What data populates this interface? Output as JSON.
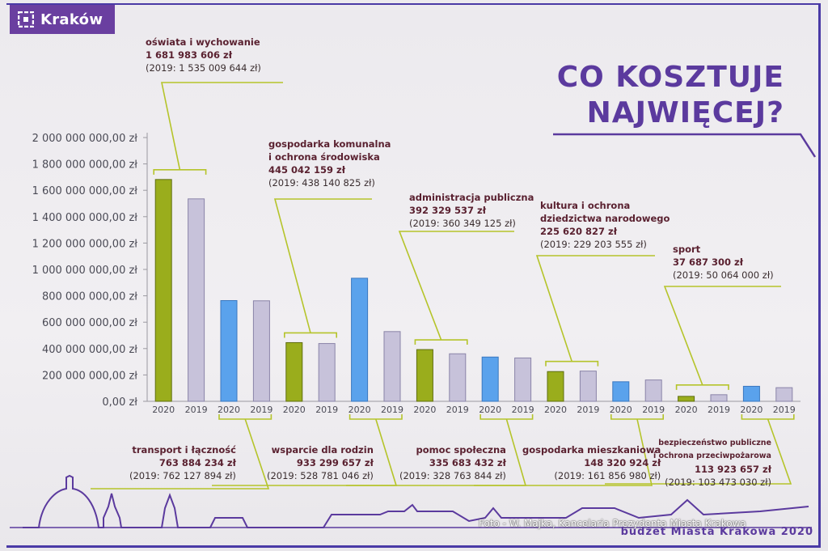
{
  "brand": {
    "name": "Kraków",
    "logo_icon": "krakow-logo-icon"
  },
  "title_lines": [
    "CO KOSZTUJE",
    "NAJWIĘCEJ?"
  ],
  "footer": {
    "brand_line": "budżet Miasta Krakowa 2020",
    "photo_credit": "Foto - W. Majka, Kancelaria Prezydenta Miasta Krakowa"
  },
  "colors": {
    "accent": "#5b3a9e",
    "bar_2020_green": "#9aad1c",
    "bar_2020_blue": "#5aa2ec",
    "bar_2019": "#c7c2da",
    "callout_line": "#b5c42a"
  },
  "chart_data": {
    "type": "bar",
    "ylim": [
      0,
      2000000000
    ],
    "yticks": [
      "0,00 zł",
      "200 000 000,00 zł",
      "400 000 000,00 zł",
      "600 000 000,00 zł",
      "800 000 000,00 zł",
      "1 000 000 000,00 zł",
      "1 200 000 000,00 zł",
      "1 400 000 000,00 zł",
      "1 600 000 000,00 zł",
      "1 800 000 000,00 zł",
      "2 000 000 000,00 zł"
    ],
    "categories": [
      {
        "label": "oświata i wychowanie",
        "amount_2020": "1 681 983 606 zł",
        "prev": "(2019: 1 535 009 644 zł)",
        "v2020": 1681983606,
        "v2019": 1535009644,
        "color2020": "green"
      },
      {
        "label": "transport i łączność",
        "amount_2020": "763 884 234 zł",
        "prev": "(2019: 762 127 894 zł)",
        "v2020": 763884234,
        "v2019": 762127894,
        "color2020": "blue"
      },
      {
        "label": "gospodarka komunalna i ochrona środowiska",
        "amount_2020": "445 042 159 zł",
        "prev": "(2019: 438 140 825 zł)",
        "v2020": 445042159,
        "v2019": 438140825,
        "color2020": "green"
      },
      {
        "label": "wsparcie dla rodzin",
        "amount_2020": "933 299 657 zł",
        "prev": "(2019: 528 781 046 zł)",
        "v2020": 933299657,
        "v2019": 528781046,
        "color2020": "blue"
      },
      {
        "label": "administracja publiczna",
        "amount_2020": "392 329 537 zł",
        "prev": "(2019: 360 349 125 zł)",
        "v2020": 392329537,
        "v2019": 360349125,
        "color2020": "green"
      },
      {
        "label": "pomoc społeczna",
        "amount_2020": "335 683 432 zł",
        "prev": "(2019:  328 763 844 zł)",
        "v2020": 335683432,
        "v2019": 328763844,
        "color2020": "blue"
      },
      {
        "label": "kultura i ochrona dziedzictwa narodowego",
        "amount_2020": "225 620 827 zł",
        "prev": "(2019: 229 203 555 zł)",
        "v2020": 225620827,
        "v2019": 229203555,
        "color2020": "green"
      },
      {
        "label": "gospodarka mieszkaniowa",
        "amount_2020": "148 320 924 zł",
        "prev": "(2019: 161 856 980 zł)",
        "v2020": 148320924,
        "v2019": 161856980,
        "color2020": "blue"
      },
      {
        "label": "sport",
        "amount_2020": "37 687 300  zł",
        "prev": "(2019: 50 064 000 zł)",
        "v2020": 37687300,
        "v2019": 50064000,
        "color2020": "green"
      },
      {
        "label": "bezpieczeństwo publiczne i ochrona przeciwpożarowa",
        "amount_2020": "113 923 657 zł",
        "prev": "(2019: 103 473 030 zł)",
        "v2020": 113923657,
        "v2019": 103473030,
        "color2020": "blue"
      }
    ],
    "xtick_labels": [
      "2020",
      "2019"
    ]
  },
  "annotations_top": [
    {
      "lines": [
        "oświata i wychowanie"
      ],
      "amount": "1 681 983 606 zł",
      "prev": "(2019: 1 535 009 644 zł)"
    },
    {
      "lines": [
        "gospodarka komunalna",
        "i ochrona środowiska"
      ],
      "amount": "445 042 159 zł",
      "prev": "(2019: 438 140 825 zł)"
    },
    {
      "lines": [
        "administracja publiczna"
      ],
      "amount": "392 329 537 zł",
      "prev": "(2019: 360 349 125 zł)"
    },
    {
      "lines": [
        "kultura i ochrona",
        "dziedzictwa narodowego"
      ],
      "amount": "225 620 827 zł",
      "prev": "(2019: 229 203 555 zł)"
    },
    {
      "lines": [
        "sport"
      ],
      "amount": "37 687 300  zł",
      "prev": "(2019: 50 064 000 zł)"
    }
  ],
  "annotations_bottom": [
    {
      "lines": [
        "transport i łączność"
      ],
      "amount": "763 884 234 zł",
      "prev": "(2019: 762 127 894 zł)"
    },
    {
      "lines": [
        "wsparcie dla rodzin"
      ],
      "amount": "933 299 657 zł",
      "prev": "(2019: 528 781 046 zł)"
    },
    {
      "lines": [
        "pomoc społeczna"
      ],
      "amount": "335 683 432 zł",
      "prev": "(2019:  328 763 844 zł)"
    },
    {
      "lines": [
        "gospodarka mieszkaniowa"
      ],
      "amount": "148 320 924 zł",
      "prev": "(2019: 161 856 980 zł)"
    },
    {
      "lines": [
        "bezpieczeństwo publiczne",
        "i ochrona przeciwpożarowa"
      ],
      "amount": "113 923 657 zł",
      "prev": "(2019: 103 473 030 zł)"
    }
  ]
}
